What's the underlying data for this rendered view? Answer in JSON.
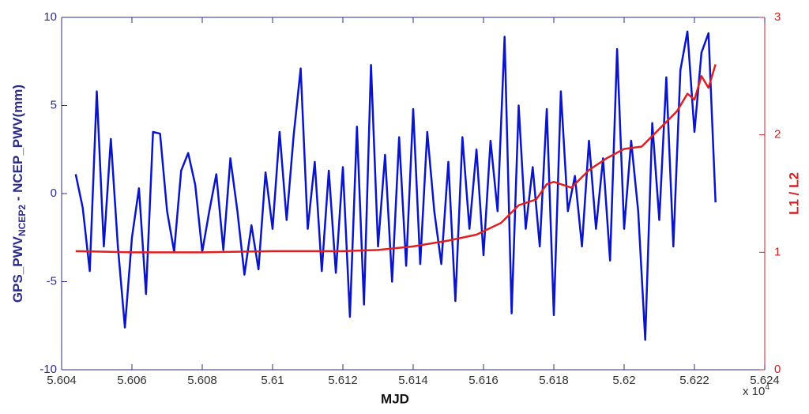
{
  "chart_data": {
    "type": "line",
    "xlabel": "MJD",
    "x_multiplier": {
      "base": "x 10",
      "exponent": "4"
    },
    "ylabel": {
      "main": "GPS_PWV",
      "sub": "NCEP2",
      "rest": " - NCEP_PWV(mm)"
    },
    "y2label": "L1 / L2",
    "xlim": [
      5.604,
      5.624
    ],
    "xticks": [
      5.604,
      5.606,
      5.608,
      5.61,
      5.612,
      5.614,
      5.616,
      5.618,
      5.62,
      5.622,
      5.624
    ],
    "ylim": [
      -10,
      10
    ],
    "yticks": [
      -10,
      -5,
      0,
      5,
      10
    ],
    "y2lim": [
      0,
      3
    ],
    "y2ticks": [
      0,
      1,
      2,
      3
    ],
    "left_axis_color": "#2b2b8c",
    "right_axis_color": "#d42020",
    "series": [
      {
        "color": "#0a14c8",
        "axis": "y",
        "x": [
          5.6044,
          5.6046,
          5.6048,
          5.605,
          5.6052,
          5.6054,
          5.6056,
          5.6058,
          5.606,
          5.6062,
          5.6064,
          5.6066,
          5.6068,
          5.607,
          5.6072,
          5.6074,
          5.6076,
          5.6078,
          5.608,
          5.6082,
          5.6084,
          5.6086,
          5.6088,
          5.609,
          5.6092,
          5.6094,
          5.6096,
          5.6098,
          5.61,
          5.6102,
          5.6104,
          5.6106,
          5.6108,
          5.611,
          5.6112,
          5.6114,
          5.6116,
          5.6118,
          5.612,
          5.6122,
          5.6124,
          5.6126,
          5.6128,
          5.613,
          5.6132,
          5.6134,
          5.6136,
          5.6138,
          5.614,
          5.6142,
          5.6144,
          5.6146,
          5.6148,
          5.615,
          5.6152,
          5.6154,
          5.6156,
          5.6158,
          5.616,
          5.6162,
          5.6164,
          5.6166,
          5.6168,
          5.617,
          5.6172,
          5.6174,
          5.6176,
          5.6178,
          5.618,
          5.6182,
          5.6184,
          5.6186,
          5.6188,
          5.619,
          5.6192,
          5.6194,
          5.6196,
          5.6198,
          5.62,
          5.6202,
          5.6204,
          5.6206,
          5.6208,
          5.621,
          5.6212,
          5.6214,
          5.6216,
          5.6218,
          5.622,
          5.6222,
          5.6224,
          5.6226
        ],
        "values": [
          1.1,
          -0.8,
          -4.4,
          5.8,
          -3.0,
          3.1,
          -3.0,
          -7.6,
          -2.5,
          0.3,
          -5.7,
          3.5,
          3.4,
          -1.0,
          -3.3,
          1.3,
          2.3,
          0.5,
          -3.3,
          -1.0,
          1.1,
          -3.2,
          2.0,
          -1.0,
          -4.6,
          -1.8,
          -4.3,
          1.2,
          -2.0,
          3.5,
          -1.5,
          3.3,
          7.1,
          -2.0,
          1.8,
          -4.4,
          1.3,
          -4.5,
          1.5,
          -7.0,
          3.8,
          -6.3,
          7.3,
          -3.0,
          2.2,
          -5.0,
          3.2,
          -4.1,
          4.8,
          -4.0,
          3.5,
          -1.0,
          -4.0,
          1.8,
          -6.1,
          3.2,
          -2.0,
          2.5,
          -3.5,
          3.0,
          -1.0,
          8.9,
          -6.8,
          5.0,
          -2.0,
          1.5,
          -3.0,
          4.8,
          -6.9,
          5.8,
          -1.0,
          1.0,
          -3.0,
          3.0,
          -2.0,
          2.0,
          -3.8,
          8.2,
          -2.0,
          3.0,
          -1.0,
          -8.3,
          4.0,
          -1.5,
          6.6,
          -3.0,
          7.0,
          9.2,
          3.5,
          8.0,
          9.1,
          -0.5
        ]
      },
      {
        "color": "#e02020",
        "axis": "y2",
        "x": [
          5.6044,
          5.606,
          5.608,
          5.61,
          5.612,
          5.613,
          5.614,
          5.615,
          5.6158,
          5.6165,
          5.617,
          5.6175,
          5.6178,
          5.618,
          5.6185,
          5.619,
          5.6195,
          5.62,
          5.6205,
          5.621,
          5.6215,
          5.6218,
          5.622,
          5.6222,
          5.6224,
          5.6226
        ],
        "values": [
          1.01,
          1.0,
          1.0,
          1.01,
          1.01,
          1.02,
          1.05,
          1.1,
          1.15,
          1.25,
          1.4,
          1.45,
          1.58,
          1.6,
          1.55,
          1.7,
          1.8,
          1.88,
          1.9,
          2.05,
          2.2,
          2.35,
          2.3,
          2.5,
          2.4,
          2.6
        ]
      }
    ]
  }
}
